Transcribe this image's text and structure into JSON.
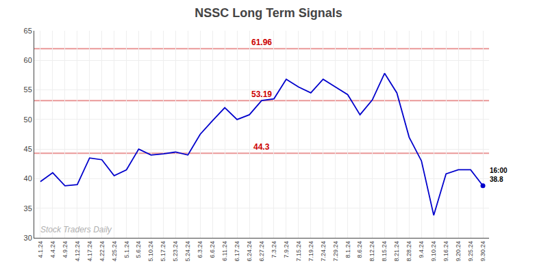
{
  "chart_data": {
    "type": "line",
    "title": "NSSC Long Term Signals",
    "categories": [
      "4.1.24",
      "4.4.24",
      "4.9.24",
      "4.12.24",
      "4.17.24",
      "4.22.24",
      "4.25.24",
      "5.1.24",
      "5.6.24",
      "5.10.24",
      "5.17.24",
      "5.23.24",
      "5.24.24",
      "6.3.24",
      "6.6.24",
      "6.11.24",
      "6.17.24",
      "6.24.24",
      "6.27.24",
      "7.3.24",
      "7.9.24",
      "7.15.24",
      "7.19.24",
      "7.24.24",
      "7.29.24",
      "8.1.24",
      "8.6.24",
      "8.12.24",
      "8.15.24",
      "8.21.24",
      "8.28.24",
      "9.4.24",
      "9.10.24",
      "9.16.24",
      "9.20.24",
      "9.25.24",
      "9.30.24"
    ],
    "values": [
      39.5,
      41.0,
      38.8,
      39.0,
      43.5,
      43.2,
      40.5,
      41.5,
      45.0,
      44.0,
      44.2,
      44.5,
      44.0,
      47.5,
      49.8,
      52.0,
      50.0,
      50.8,
      53.2,
      53.5,
      56.8,
      55.5,
      54.5,
      56.8,
      55.5,
      54.2,
      50.8,
      53.3,
      57.8,
      54.5,
      47.0,
      43.0,
      33.8,
      40.8,
      41.5,
      41.5,
      38.8
    ],
    "color": "#0000cc",
    "hlines": [
      {
        "y": 61.96,
        "label": "61.96",
        "color": "#cc0000"
      },
      {
        "y": 53.19,
        "label": "53.19",
        "color": "#cc0000"
      },
      {
        "y": 44.3,
        "label": "44.3",
        "color": "#cc0000"
      }
    ],
    "annotations": [
      {
        "category": "9.30.24",
        "lines": [
          "16:00",
          "38.8"
        ]
      }
    ],
    "watermark": "Stock Traders Daily",
    "ylim": [
      30,
      65
    ],
    "yticks": [
      30,
      35,
      40,
      45,
      50,
      55,
      60,
      65
    ],
    "grid": true
  }
}
